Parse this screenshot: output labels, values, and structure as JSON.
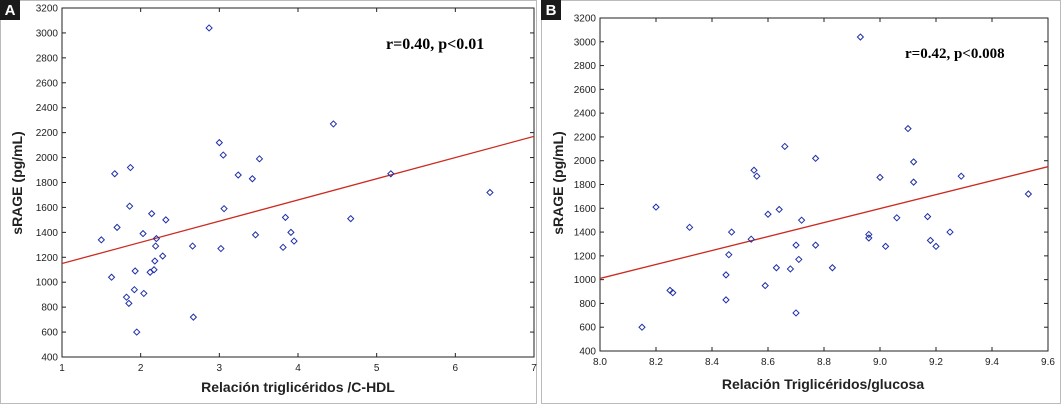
{
  "chart_data": [
    {
      "panel": "A",
      "type": "scatter",
      "xlabel": "Relación triglicéridos /C-HDL",
      "ylabel": "sRAGE (pg/mL)",
      "annotation": "r=0.40, p<0.01",
      "xlim": [
        1,
        7
      ],
      "ylim": [
        400,
        3200
      ],
      "xticks": [
        1,
        2,
        3,
        4,
        5,
        6,
        7
      ],
      "yticks": [
        400,
        600,
        800,
        1000,
        1200,
        1400,
        1600,
        1800,
        2000,
        2200,
        2400,
        2600,
        2800,
        3000,
        3200
      ],
      "grid": false,
      "fit_line": {
        "x": [
          1,
          7
        ],
        "y": [
          1150,
          2170
        ]
      },
      "points": [
        [
          1.5,
          1340
        ],
        [
          1.63,
          1040
        ],
        [
          1.67,
          1870
        ],
        [
          1.7,
          1440
        ],
        [
          1.82,
          880
        ],
        [
          1.85,
          830
        ],
        [
          1.86,
          1610
        ],
        [
          1.87,
          1920
        ],
        [
          1.92,
          940
        ],
        [
          1.93,
          1090
        ],
        [
          1.95,
          600
        ],
        [
          2.03,
          1390
        ],
        [
          2.04,
          910
        ],
        [
          2.12,
          1080
        ],
        [
          2.14,
          1550
        ],
        [
          2.17,
          1100
        ],
        [
          2.18,
          1170
        ],
        [
          2.19,
          1290
        ],
        [
          2.2,
          1350
        ],
        [
          2.28,
          1210
        ],
        [
          2.32,
          1500
        ],
        [
          2.66,
          1290
        ],
        [
          2.67,
          720
        ],
        [
          2.87,
          3040
        ],
        [
          3.0,
          2120
        ],
        [
          3.02,
          1270
        ],
        [
          3.05,
          2020
        ],
        [
          3.06,
          1590
        ],
        [
          3.24,
          1860
        ],
        [
          3.42,
          1830
        ],
        [
          3.46,
          1380
        ],
        [
          3.51,
          1990
        ],
        [
          3.81,
          1280
        ],
        [
          3.84,
          1520
        ],
        [
          3.91,
          1400
        ],
        [
          3.95,
          1330
        ],
        [
          4.45,
          2270
        ],
        [
          4.67,
          1510
        ],
        [
          5.18,
          1870
        ],
        [
          6.44,
          1720
        ]
      ]
    },
    {
      "panel": "B",
      "type": "scatter",
      "xlabel": "Relación Triglicéridos/glucosa",
      "ylabel": "sRAGE (pg/mL)",
      "annotation": "r=0.42, p<0.008",
      "xlim": [
        8.0,
        9.6
      ],
      "ylim": [
        400,
        3200
      ],
      "xticks": [
        "8.0",
        "8.2",
        "8.4",
        "8.6",
        "8.8",
        "9.0",
        "9.2",
        "9.4",
        "9.6"
      ],
      "yticks": [
        400,
        600,
        800,
        1000,
        1200,
        1400,
        1600,
        1800,
        2000,
        2200,
        2400,
        2600,
        2800,
        3000,
        3200
      ],
      "grid": false,
      "fit_line": {
        "x": [
          8.0,
          9.6
        ],
        "y": [
          1010,
          1950
        ]
      },
      "points": [
        [
          8.15,
          600
        ],
        [
          8.2,
          1610
        ],
        [
          8.25,
          910
        ],
        [
          8.26,
          890
        ],
        [
          8.32,
          1440
        ],
        [
          8.45,
          1040
        ],
        [
          8.45,
          830
        ],
        [
          8.46,
          1210
        ],
        [
          8.47,
          1400
        ],
        [
          8.54,
          1340
        ],
        [
          8.55,
          1920
        ],
        [
          8.56,
          1870
        ],
        [
          8.59,
          950
        ],
        [
          8.6,
          1550
        ],
        [
          8.63,
          1100
        ],
        [
          8.64,
          1590
        ],
        [
          8.66,
          2120
        ],
        [
          8.68,
          1090
        ],
        [
          8.7,
          720
        ],
        [
          8.7,
          1290
        ],
        [
          8.71,
          1170
        ],
        [
          8.72,
          1500
        ],
        [
          8.77,
          1290
        ],
        [
          8.77,
          2020
        ],
        [
          8.83,
          1100
        ],
        [
          8.93,
          3040
        ],
        [
          8.96,
          1380
        ],
        [
          8.96,
          1350
        ],
        [
          9.0,
          1860
        ],
        [
          9.02,
          1280
        ],
        [
          9.06,
          1520
        ],
        [
          9.1,
          2270
        ],
        [
          9.12,
          1990
        ],
        [
          9.12,
          1820
        ],
        [
          9.17,
          1530
        ],
        [
          9.18,
          1330
        ],
        [
          9.2,
          1280
        ],
        [
          9.25,
          1400
        ],
        [
          9.29,
          1870
        ],
        [
          9.53,
          1720
        ]
      ]
    }
  ],
  "colors": {
    "point": "#1f2fa8",
    "fit_line": "#cc2a1f",
    "axis": "#222222",
    "badge": "#1a1a1a"
  }
}
